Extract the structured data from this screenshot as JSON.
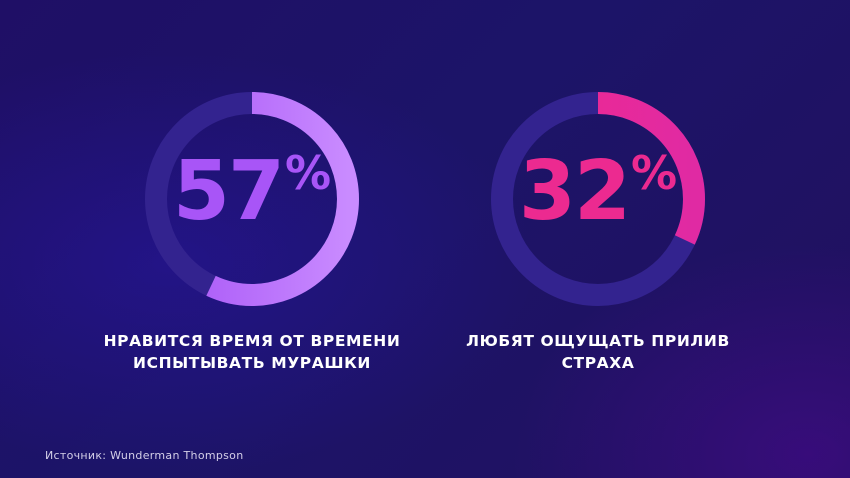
{
  "chart_data": [
    {
      "type": "pie",
      "value_percent": 57,
      "number": "57",
      "unit": "%",
      "caption_lines": [
        "НРАВИТСЯ ВРЕМЯ ОТ ВРЕМЕНИ",
        "ИСПЫТЫВАТЬ МУРАШКИ"
      ],
      "color": "#a855f7",
      "color_start": "#a653f6",
      "color_end": "#c98bff",
      "track_color": "#33238f"
    },
    {
      "type": "pie",
      "value_percent": 32,
      "number": "32",
      "unit": "%",
      "caption_lines": [
        "ЛЮБЯТ ОЩУЩАТЬ ПРИЛИВ",
        "СТРАХА"
      ],
      "color": "#ec2a90",
      "color_start": "#f1288d",
      "color_end": "#e02aa3",
      "track_color": "#33238f"
    }
  ],
  "source": "Источник: Wunderman Thompson"
}
